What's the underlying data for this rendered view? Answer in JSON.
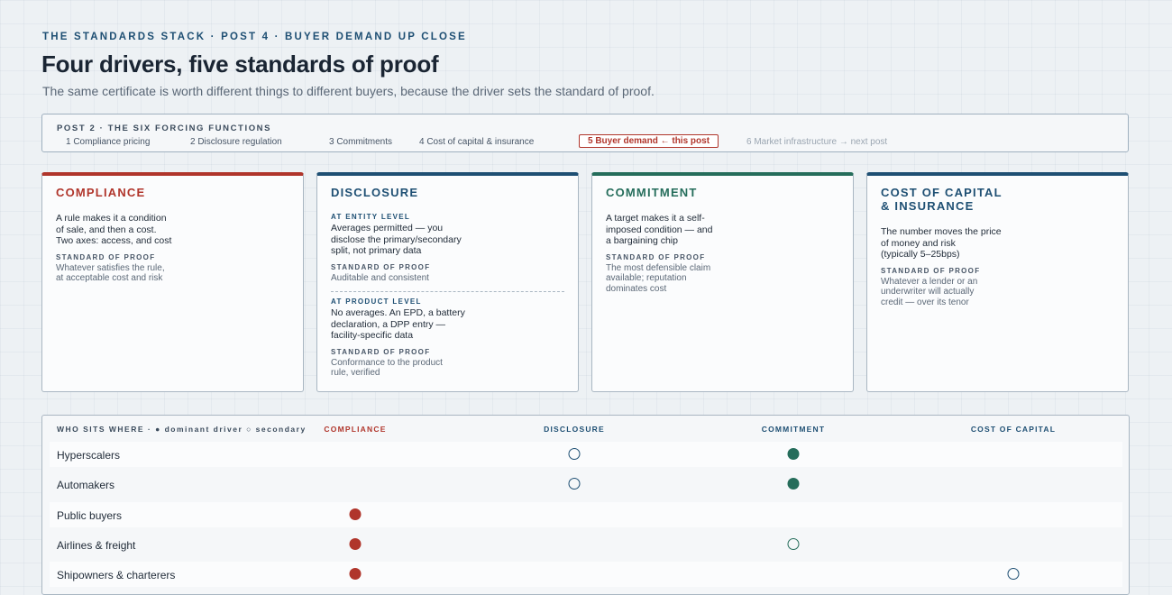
{
  "header": {
    "eyebrow": "THE STANDARDS STACK · POST 4 · BUYER DEMAND UP CLOSE",
    "title": "Four drivers, five standards of proof",
    "subtitle": "The same certificate is worth different things to different buyers, because the driver sets the standard of proof."
  },
  "nav": {
    "heading": "POST 2 · THE SIX FORCING FUNCTIONS",
    "items": [
      {
        "label": "1 Compliance pricing",
        "state": "normal"
      },
      {
        "label": "2 Disclosure regulation",
        "state": "normal"
      },
      {
        "label": "3 Commitments",
        "state": "normal"
      },
      {
        "label": "4 Cost of capital & insurance",
        "state": "normal"
      },
      {
        "label": "5 Buyer demand ← this post",
        "state": "current"
      },
      {
        "label": "6 Market infrastructure → next post",
        "state": "next"
      }
    ]
  },
  "cards": {
    "compliance": {
      "title": "COMPLIANCE",
      "body": "A rule makes it a condition\nof sale, and then a cost.\nTwo axes: access, and cost",
      "proof_label": "STANDARD OF PROOF",
      "proof": "Whatever satisfies the rule,\nat acceptable cost and risk"
    },
    "disclosure": {
      "title": "DISCLOSURE",
      "entity_label": "AT ENTITY LEVEL",
      "entity_body": "Averages permitted — you\ndisclose the primary/secondary\nsplit, not primary data",
      "entity_proof_label": "STANDARD OF PROOF",
      "entity_proof": "Auditable and consistent",
      "product_label": "AT PRODUCT LEVEL",
      "product_body": "No averages. An EPD, a battery\ndeclaration, a DPP entry —\nfacility-specific data",
      "product_proof_label": "STANDARD OF PROOF",
      "product_proof": "Conformance to the product\nrule, verified"
    },
    "commitment": {
      "title": "COMMITMENT",
      "body": "A target makes it a self-\nimposed condition — and\na bargaining chip",
      "proof_label": "STANDARD OF PROOF",
      "proof": "The most defensible claim\navailable; reputation\ndominates cost"
    },
    "capital": {
      "title": "COST OF CAPITAL\n& INSURANCE",
      "body": "The number moves the price\nof money and risk\n(typically 5–25bps)",
      "proof_label": "STANDARD OF PROOF",
      "proof": "Whatever a lender or an\nunderwriter will actually\ncredit — over its tenor"
    }
  },
  "matrix": {
    "heading": "WHO SITS WHERE · ● dominant driver ○ secondary",
    "columns": [
      "COMPLIANCE",
      "DISCLOSURE",
      "COMMITMENT",
      "COST OF CAPITAL"
    ],
    "rows": [
      {
        "label": "Hyperscalers",
        "cells": [
          "",
          "secondary",
          "dominant",
          ""
        ]
      },
      {
        "label": "Automakers",
        "cells": [
          "",
          "secondary",
          "dominant",
          ""
        ]
      },
      {
        "label": "Public buyers",
        "cells": [
          "dominant",
          "",
          "",
          ""
        ]
      },
      {
        "label": "Airlines & freight",
        "cells": [
          "dominant",
          "",
          "secondary",
          ""
        ]
      },
      {
        "label": "Shipowners & charterers",
        "cells": [
          "dominant",
          "",
          "",
          "secondary"
        ]
      }
    ],
    "colors": [
      "#b0352b",
      "#1e4f73",
      "#256d5b",
      "#1e4f73"
    ]
  }
}
